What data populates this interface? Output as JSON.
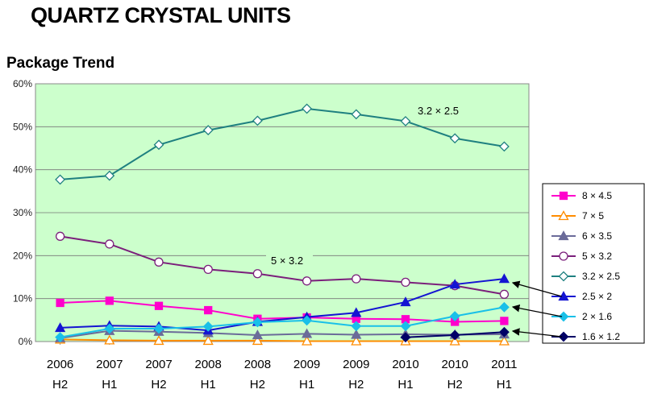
{
  "header": {
    "title": "QUARTZ CRYSTAL UNITS",
    "subtitle": "Package Trend"
  },
  "chart_data": {
    "type": "line",
    "title": "Package Trend",
    "xlabel": "",
    "ylabel": "",
    "ylim": [
      0,
      60
    ],
    "y_ticks": [
      "0%",
      "10%",
      "20%",
      "30%",
      "40%",
      "50%",
      "60%"
    ],
    "categories": [
      [
        "2006",
        "H2"
      ],
      [
        "2007",
        "H1"
      ],
      [
        "2007",
        "H2"
      ],
      [
        "2008",
        "H1"
      ],
      [
        "2008",
        "H2"
      ],
      [
        "2009",
        "H1"
      ],
      [
        "2009",
        "H2"
      ],
      [
        "2010",
        "H1"
      ],
      [
        "2010",
        "H2"
      ],
      [
        "2011",
        "H1"
      ]
    ],
    "grid": true,
    "legend_position": "right",
    "series": [
      {
        "name": "8 × 4.5",
        "color": "#ff00cc",
        "marker": "square",
        "filled": true,
        "values": [
          9.0,
          9.5,
          8.3,
          7.3,
          5.3,
          5.6,
          5.3,
          5.2,
          4.6,
          4.8
        ]
      },
      {
        "name": "7 × 5",
        "color": "#ff8c00",
        "marker": "triangle",
        "filled": false,
        "values": [
          0.5,
          0.3,
          0.2,
          0.2,
          0.2,
          0.1,
          0.1,
          0.1,
          0.1,
          0.1
        ]
      },
      {
        "name": "6 × 3.5",
        "color": "#6b6b99",
        "marker": "triangle",
        "filled": true,
        "values": [
          0.8,
          2.5,
          2.3,
          2.0,
          1.5,
          1.8,
          1.6,
          1.7,
          1.6,
          1.7
        ]
      },
      {
        "name": "5 × 3.2",
        "color": "#7b1f7b",
        "marker": "circle",
        "filled": false,
        "values": [
          24.5,
          22.7,
          18.5,
          16.8,
          15.8,
          14.1,
          14.6,
          13.8,
          13.0,
          11.0
        ]
      },
      {
        "name": "3.2 × 2.5",
        "color": "#1f8080",
        "marker": "diamond",
        "filled": false,
        "values": [
          37.7,
          38.6,
          45.8,
          49.2,
          51.4,
          54.2,
          52.9,
          51.3,
          47.3,
          45.4
        ]
      },
      {
        "name": "2.5 × 2",
        "color": "#1414d2",
        "marker": "triangle",
        "filled": true,
        "values": [
          3.2,
          3.7,
          3.5,
          2.6,
          4.6,
          5.7,
          6.7,
          9.2,
          13.3,
          14.6
        ]
      },
      {
        "name": "2 × 1.6",
        "color": "#19c0e8",
        "marker": "diamond",
        "filled": true,
        "values": [
          1.0,
          3.0,
          3.0,
          3.5,
          4.5,
          4.9,
          3.6,
          3.6,
          5.9,
          8.0
        ]
      },
      {
        "name": "1.6 × 1.2",
        "color": "#000066",
        "marker": "diamond",
        "filled": true,
        "values": [
          null,
          null,
          null,
          null,
          null,
          null,
          null,
          1.0,
          1.5,
          2.2
        ]
      }
    ],
    "annotations": [
      "3.2 × 2.5",
      "5 × 3.2"
    ]
  }
}
